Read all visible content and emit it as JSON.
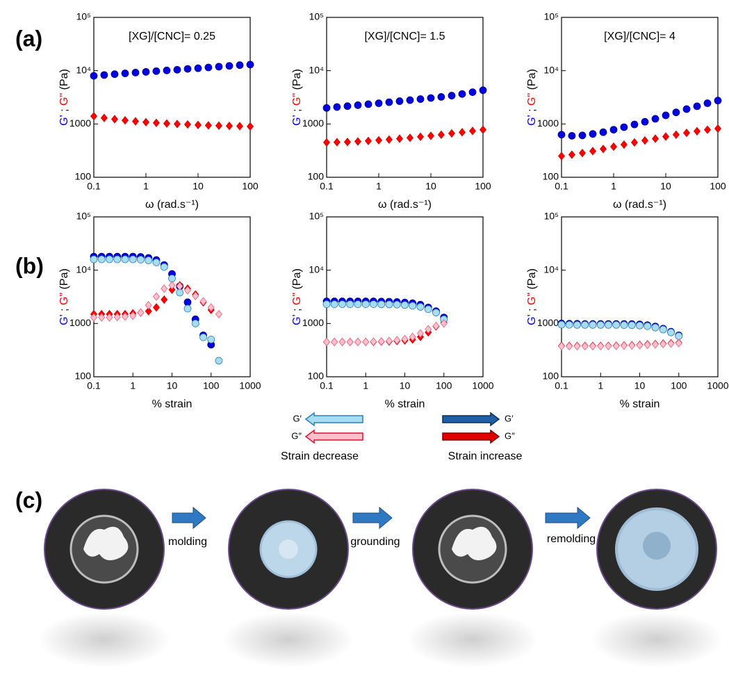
{
  "panel_labels": [
    "(a)",
    "(b)",
    "(c)"
  ],
  "chart_data": [
    {
      "type": "scatter",
      "title": "[XG]/[CNC]= 0.25",
      "xlabel": "ω (rad.s⁻¹)",
      "ylabel": [
        {
          "text": "G'",
          "color": "#0000ff"
        },
        {
          "text": " ; ",
          "color": "#000000"
        },
        {
          "text": "G\"",
          "color": "#ff0000"
        },
        {
          "text": " (Pa)",
          "color": "#000000"
        }
      ],
      "xscale": "log",
      "yscale": "log",
      "xlim": [
        0.1,
        100
      ],
      "ylim": [
        100,
        100000
      ],
      "xticks": [
        0.1,
        1,
        10,
        100
      ],
      "yticks": [
        100,
        1000,
        {
          "value": 10000,
          "label": "10⁴"
        },
        {
          "value": 100000,
          "label": "10⁵"
        }
      ],
      "x": [
        0.1,
        0.158,
        0.251,
        0.398,
        0.631,
        1,
        1.58,
        2.51,
        3.98,
        6.31,
        10,
        15.8,
        25.1,
        39.8,
        63.1,
        100
      ],
      "series": [
        {
          "color": "#0000e0",
          "edge": "#00008b",
          "marker": "circle",
          "values": [
            8000,
            8300,
            8600,
            8900,
            9200,
            9500,
            9800,
            10100,
            10400,
            10800,
            11100,
            11500,
            11900,
            12300,
            12700,
            13000
          ]
        },
        {
          "color": "#ff0000",
          "edge": "#cc0000",
          "marker": "diamond",
          "values": [
            1400,
            1300,
            1230,
            1170,
            1120,
            1080,
            1050,
            1020,
            1000,
            980,
            960,
            940,
            930,
            920,
            910,
            900
          ]
        }
      ]
    },
    {
      "type": "scatter",
      "title": "[XG]/[CNC]= 1.5",
      "xlabel": "ω (rad.s⁻¹)",
      "ylabel": [
        {
          "text": "G'",
          "color": "#0000ff"
        },
        {
          "text": " ; ",
          "color": "#000000"
        },
        {
          "text": "G\"",
          "color": "#ff0000"
        },
        {
          "text": " (Pa)",
          "color": "#000000"
        }
      ],
      "xscale": "log",
      "yscale": "log",
      "xlim": [
        0.1,
        100
      ],
      "ylim": [
        100,
        100000
      ],
      "xticks": [
        0.1,
        1,
        10,
        100
      ],
      "yticks": [
        100,
        1000,
        {
          "value": 10000,
          "label": "10⁴"
        },
        {
          "value": 100000,
          "label": "10⁵"
        }
      ],
      "x": [
        0.1,
        0.158,
        0.251,
        0.398,
        0.631,
        1,
        1.58,
        2.51,
        3.98,
        6.31,
        10,
        15.8,
        25.1,
        39.8,
        63.1,
        100
      ],
      "series": [
        {
          "color": "#0000e0",
          "edge": "#00008b",
          "marker": "circle",
          "values": [
            2000,
            2080,
            2160,
            2250,
            2350,
            2450,
            2560,
            2680,
            2800,
            2930,
            3070,
            3220,
            3400,
            3650,
            3950,
            4300
          ]
        },
        {
          "color": "#ff0000",
          "edge": "#cc0000",
          "marker": "diamond",
          "values": [
            450,
            455,
            460,
            470,
            480,
            495,
            510,
            530,
            550,
            575,
            600,
            630,
            665,
            700,
            740,
            780
          ]
        }
      ]
    },
    {
      "type": "scatter",
      "title": "[XG]/[CNC]= 4",
      "xlabel": "ω (rad.s⁻¹)",
      "ylabel": [
        {
          "text": "G'",
          "color": "#0000ff"
        },
        {
          "text": " ; ",
          "color": "#000000"
        },
        {
          "text": "G\"",
          "color": "#ff0000"
        },
        {
          "text": " (Pa)",
          "color": "#000000"
        }
      ],
      "xscale": "log",
      "yscale": "log",
      "xlim": [
        0.1,
        100
      ],
      "ylim": [
        100,
        100000
      ],
      "xticks": [
        0.1,
        1,
        10,
        100
      ],
      "yticks": [
        100,
        1000,
        {
          "value": 10000,
          "label": "10⁴"
        },
        {
          "value": 100000,
          "label": "10⁵"
        }
      ],
      "x": [
        0.1,
        0.158,
        0.251,
        0.398,
        0.631,
        1,
        1.58,
        2.51,
        3.98,
        6.31,
        10,
        15.8,
        25.1,
        39.8,
        63.1,
        100
      ],
      "series": [
        {
          "color": "#0000e0",
          "edge": "#00008b",
          "marker": "circle",
          "values": [
            630,
            600,
            610,
            650,
            700,
            780,
            870,
            980,
            1100,
            1250,
            1450,
            1650,
            1900,
            2150,
            2450,
            2750
          ]
        },
        {
          "color": "#ff0000",
          "edge": "#cc0000",
          "marker": "diamond",
          "values": [
            250,
            265,
            285,
            310,
            340,
            375,
            410,
            450,
            490,
            530,
            580,
            630,
            680,
            730,
            780,
            820
          ]
        }
      ]
    },
    {
      "type": "scatter",
      "xlabel": "% strain",
      "ylabel": [
        {
          "text": "G'",
          "color": "#0000ff"
        },
        {
          "text": " ; ",
          "color": "#000000"
        },
        {
          "text": "G\"",
          "color": "#ff0000"
        },
        {
          "text": " (Pa)",
          "color": "#000000"
        }
      ],
      "xscale": "log",
      "yscale": "log",
      "xlim": [
        0.1,
        1000
      ],
      "ylim": [
        100,
        100000
      ],
      "xticks": [
        0.1,
        1,
        10,
        100,
        1000
      ],
      "yticks": [
        100,
        1000,
        {
          "value": 10000,
          "label": "10⁴"
        },
        {
          "value": 100000,
          "label": "10⁵"
        }
      ],
      "x": [
        0.1,
        0.158,
        0.251,
        0.398,
        0.631,
        1,
        1.58,
        2.51,
        3.98,
        6.31,
        10,
        15.8,
        25.1,
        39.8,
        63.1,
        100,
        158
      ],
      "series": [
        {
          "color": "#0000e0",
          "edge": "#00008b",
          "marker": "circle",
          "values": [
            18000,
            18000,
            18000,
            18000,
            18000,
            18000,
            17800,
            17000,
            15500,
            12500,
            8500,
            5000,
            2500,
            1200,
            600,
            400,
            null
          ]
        },
        {
          "color": "#ff0000",
          "edge": "#cc0000",
          "marker": "diamond",
          "values": [
            1500,
            1500,
            1500,
            1500,
            1500,
            1550,
            1600,
            1700,
            2000,
            2800,
            4300,
            5200,
            4500,
            3500,
            2500,
            1800,
            null
          ]
        },
        {
          "color": "#a8dcf0",
          "edge": "#2a7fb8",
          "marker": "circle",
          "values": [
            16000,
            16000,
            16000,
            16000,
            16000,
            16000,
            15800,
            15300,
            14000,
            11500,
            7000,
            3800,
            1900,
            1000,
            550,
            500,
            200
          ]
        },
        {
          "color": "#ffc0cb",
          "edge": "#e06080",
          "marker": "diamond",
          "values": [
            1300,
            1300,
            1300,
            1320,
            1350,
            1400,
            1600,
            2200,
            3200,
            4500,
            5200,
            5000,
            4200,
            3300,
            2600,
            2000,
            1500
          ]
        }
      ]
    },
    {
      "type": "scatter",
      "xlabel": "% strain",
      "ylabel": [
        {
          "text": "G'",
          "color": "#0000ff"
        },
        {
          "text": " ; ",
          "color": "#000000"
        },
        {
          "text": "G\"",
          "color": "#ff0000"
        },
        {
          "text": " (Pa)",
          "color": "#000000"
        }
      ],
      "xscale": "log",
      "yscale": "log",
      "xlim": [
        0.1,
        1000
      ],
      "ylim": [
        100,
        100000
      ],
      "xticks": [
        0.1,
        1,
        10,
        100,
        1000
      ],
      "yticks": [
        100,
        1000,
        {
          "value": 10000,
          "label": "10⁴"
        },
        {
          "value": 100000,
          "label": "10⁵"
        }
      ],
      "x": [
        0.1,
        0.158,
        0.251,
        0.398,
        0.631,
        1,
        1.58,
        2.51,
        3.98,
        6.31,
        10,
        15.8,
        25.1,
        39.8,
        63.1,
        100
      ],
      "series": [
        {
          "color": "#0000e0",
          "edge": "#00008b",
          "marker": "circle",
          "values": [
            2600,
            2600,
            2600,
            2600,
            2600,
            2600,
            2600,
            2580,
            2560,
            2530,
            2480,
            2400,
            2250,
            2000,
            1700,
            1300
          ]
        },
        {
          "color": "#ff0000",
          "edge": "#cc0000",
          "marker": "diamond",
          "values": [
            450,
            450,
            450,
            450,
            450,
            450,
            450,
            455,
            460,
            470,
            480,
            500,
            560,
            680,
            880,
            1050
          ]
        },
        {
          "color": "#a8dcf0",
          "edge": "#2a7fb8",
          "marker": "circle",
          "values": [
            2300,
            2300,
            2300,
            2300,
            2300,
            2300,
            2300,
            2290,
            2280,
            2260,
            2220,
            2150,
            2050,
            1850,
            1600,
            1200
          ]
        },
        {
          "color": "#ffc0cb",
          "edge": "#e06080",
          "marker": "diamond",
          "values": [
            450,
            450,
            450,
            450,
            450,
            450,
            455,
            460,
            470,
            485,
            510,
            560,
            650,
            780,
            900,
            1000
          ]
        }
      ]
    },
    {
      "type": "scatter",
      "xlabel": "% strain",
      "ylabel": [
        {
          "text": "G'",
          "color": "#0000ff"
        },
        {
          "text": " ; ",
          "color": "#000000"
        },
        {
          "text": "G\"",
          "color": "#ff0000"
        },
        {
          "text": " (Pa)",
          "color": "#000000"
        }
      ],
      "xscale": "log",
      "yscale": "log",
      "xlim": [
        0.1,
        1000
      ],
      "ylim": [
        100,
        100000
      ],
      "xticks": [
        0.1,
        1,
        10,
        100,
        1000
      ],
      "yticks": [
        100,
        1000,
        {
          "value": 10000,
          "label": "10⁴"
        },
        {
          "value": 100000,
          "label": "10⁵"
        }
      ],
      "x": [
        0.1,
        0.158,
        0.251,
        0.398,
        0.631,
        1,
        1.58,
        2.51,
        3.98,
        6.31,
        10,
        15.8,
        25.1,
        39.8,
        63.1,
        100
      ],
      "series": [
        {
          "color": "#0000e0",
          "edge": "#00008b",
          "marker": "circle",
          "values": [
            1000,
            990,
            985,
            980,
            980,
            980,
            980,
            980,
            980,
            975,
            960,
            930,
            880,
            800,
            700,
            600
          ]
        },
        {
          "color": "#ff0000",
          "edge": "#cc0000",
          "marker": "diamond",
          "values": [
            380,
            380,
            380,
            380,
            380,
            380,
            382,
            385,
            388,
            392,
            398,
            405,
            412,
            420,
            428,
            435
          ]
        },
        {
          "color": "#a8dcf0",
          "edge": "#2a7fb8",
          "marker": "circle",
          "values": [
            950,
            945,
            940,
            940,
            940,
            940,
            940,
            940,
            935,
            930,
            915,
            890,
            840,
            770,
            680,
            580
          ]
        },
        {
          "color": "#ffc0cb",
          "edge": "#e06080",
          "marker": "diamond",
          "values": [
            375,
            375,
            375,
            375,
            375,
            376,
            378,
            380,
            383,
            387,
            392,
            398,
            405,
            412,
            420,
            428
          ]
        }
      ]
    }
  ],
  "legend": {
    "decrease": {
      "label": "Strain decrease",
      "items": [
        {
          "text": "G′",
          "color": "#a8dcf0",
          "edge": "#2a7fb8"
        },
        {
          "text": "G″",
          "color": "#ffc0cb",
          "edge": "#e0102f"
        }
      ]
    },
    "increase": {
      "label": "Strain increase",
      "items": [
        {
          "text": "G′",
          "color": "#1f5fa8",
          "edge": "#0b2d5a"
        },
        {
          "text": "G″",
          "color": "#e00000",
          "edge": "#800000"
        }
      ]
    }
  },
  "process": [
    "molding",
    "grounding",
    "remolding"
  ]
}
